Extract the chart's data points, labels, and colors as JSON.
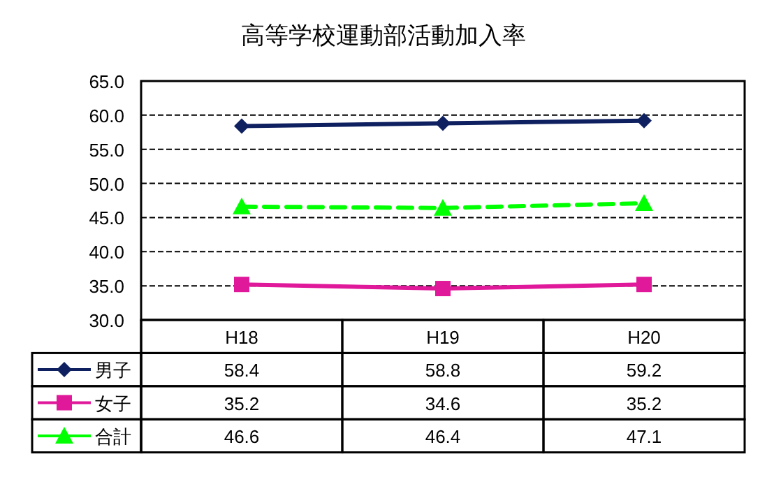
{
  "chart_data": {
    "type": "line",
    "title": "高等学校運動部活動加入率",
    "categories": [
      "H18",
      "H19",
      "H20"
    ],
    "series": [
      {
        "name": "男子",
        "color": "#0f2060",
        "values": [
          58.4,
          58.8,
          59.2
        ],
        "marker": "diamond",
        "line_style": "solid"
      },
      {
        "name": "女子",
        "color": "#e0189a",
        "values": [
          35.2,
          34.6,
          35.2
        ],
        "marker": "square",
        "line_style": "solid"
      },
      {
        "name": "合計",
        "color": "#00ff00",
        "values": [
          46.6,
          46.4,
          47.1
        ],
        "marker": "triangle",
        "line_style": "dashed"
      }
    ],
    "ylim": [
      30,
      65
    ],
    "yticks": [
      {
        "value": 30,
        "label": "30.0"
      },
      {
        "value": 35,
        "label": "35.0"
      },
      {
        "value": 40,
        "label": "40.0"
      },
      {
        "value": 45,
        "label": "45.0"
      },
      {
        "value": 50,
        "label": "50.0"
      },
      {
        "value": 55,
        "label": "55.0"
      },
      {
        "value": 60,
        "label": "60.0"
      },
      {
        "value": 65,
        "label": "65.0"
      }
    ],
    "grid": "y",
    "legend": "bottom left",
    "data_labels": true
  }
}
